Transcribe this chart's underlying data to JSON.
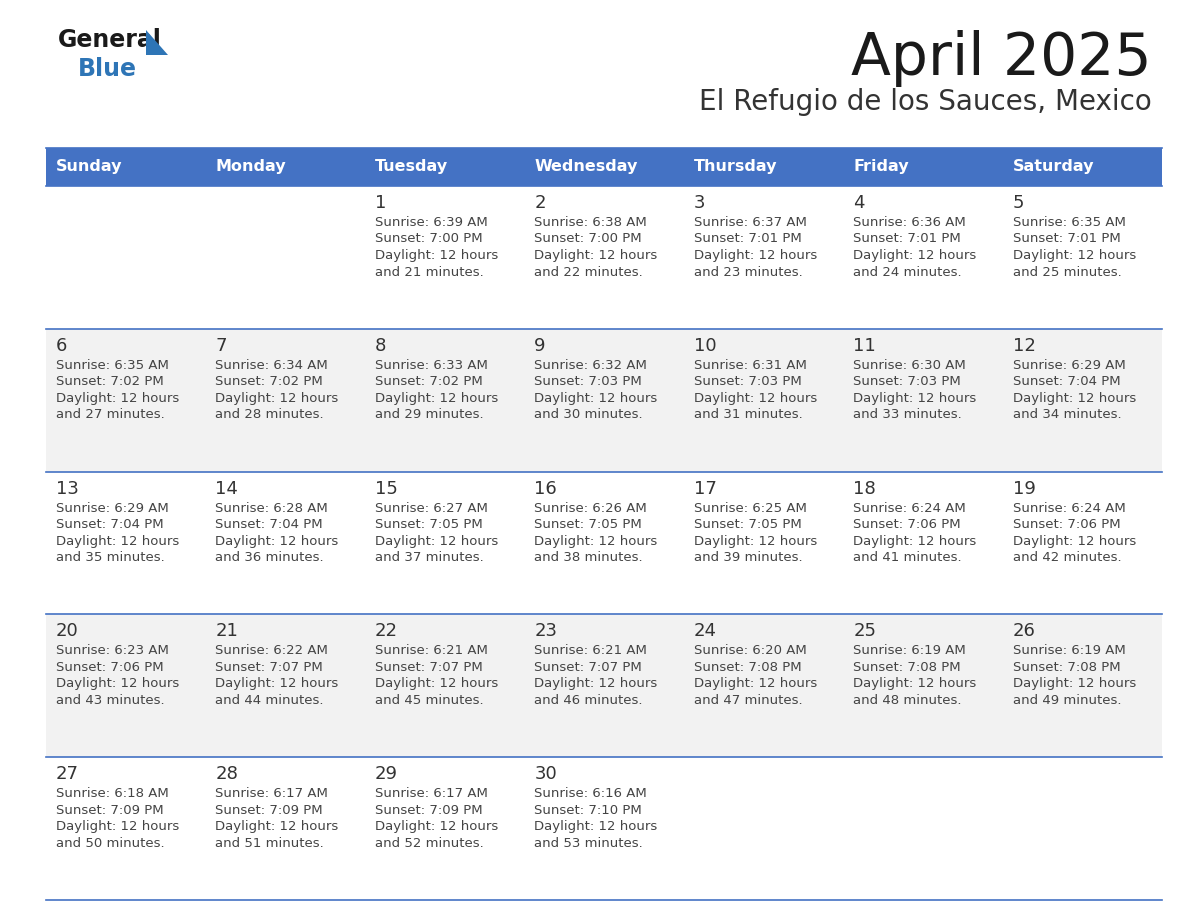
{
  "title": "April 2025",
  "subtitle": "El Refugio de los Sauces, Mexico",
  "days_of_week": [
    "Sunday",
    "Monday",
    "Tuesday",
    "Wednesday",
    "Thursday",
    "Friday",
    "Saturday"
  ],
  "header_bg": "#4472C4",
  "header_text": "#FFFFFF",
  "row_bg_white": "#FFFFFF",
  "row_bg_gray": "#F2F2F2",
  "border_color": "#4472C4",
  "day_number_color": "#333333",
  "text_color": "#444444",
  "title_color": "#1a1a1a",
  "subtitle_color": "#333333",
  "logo_general_color": "#1a1a1a",
  "logo_blue_color": "#2E75B6",
  "week_rows": [
    {
      "bg": "white",
      "days": [
        {
          "date": "",
          "sunrise": "",
          "sunset": "",
          "daylight": ""
        },
        {
          "date": "",
          "sunrise": "",
          "sunset": "",
          "daylight": ""
        },
        {
          "date": "1",
          "sunrise": "6:39 AM",
          "sunset": "7:00 PM",
          "daylight_line1": "Daylight: 12 hours",
          "daylight_line2": "and 21 minutes."
        },
        {
          "date": "2",
          "sunrise": "6:38 AM",
          "sunset": "7:00 PM",
          "daylight_line1": "Daylight: 12 hours",
          "daylight_line2": "and 22 minutes."
        },
        {
          "date": "3",
          "sunrise": "6:37 AM",
          "sunset": "7:01 PM",
          "daylight_line1": "Daylight: 12 hours",
          "daylight_line2": "and 23 minutes."
        },
        {
          "date": "4",
          "sunrise": "6:36 AM",
          "sunset": "7:01 PM",
          "daylight_line1": "Daylight: 12 hours",
          "daylight_line2": "and 24 minutes."
        },
        {
          "date": "5",
          "sunrise": "6:35 AM",
          "sunset": "7:01 PM",
          "daylight_line1": "Daylight: 12 hours",
          "daylight_line2": "and 25 minutes."
        }
      ]
    },
    {
      "bg": "gray",
      "days": [
        {
          "date": "6",
          "sunrise": "6:35 AM",
          "sunset": "7:02 PM",
          "daylight_line1": "Daylight: 12 hours",
          "daylight_line2": "and 27 minutes."
        },
        {
          "date": "7",
          "sunrise": "6:34 AM",
          "sunset": "7:02 PM",
          "daylight_line1": "Daylight: 12 hours",
          "daylight_line2": "and 28 minutes."
        },
        {
          "date": "8",
          "sunrise": "6:33 AM",
          "sunset": "7:02 PM",
          "daylight_line1": "Daylight: 12 hours",
          "daylight_line2": "and 29 minutes."
        },
        {
          "date": "9",
          "sunrise": "6:32 AM",
          "sunset": "7:03 PM",
          "daylight_line1": "Daylight: 12 hours",
          "daylight_line2": "and 30 minutes."
        },
        {
          "date": "10",
          "sunrise": "6:31 AM",
          "sunset": "7:03 PM",
          "daylight_line1": "Daylight: 12 hours",
          "daylight_line2": "and 31 minutes."
        },
        {
          "date": "11",
          "sunrise": "6:30 AM",
          "sunset": "7:03 PM",
          "daylight_line1": "Daylight: 12 hours",
          "daylight_line2": "and 33 minutes."
        },
        {
          "date": "12",
          "sunrise": "6:29 AM",
          "sunset": "7:04 PM",
          "daylight_line1": "Daylight: 12 hours",
          "daylight_line2": "and 34 minutes."
        }
      ]
    },
    {
      "bg": "white",
      "days": [
        {
          "date": "13",
          "sunrise": "6:29 AM",
          "sunset": "7:04 PM",
          "daylight_line1": "Daylight: 12 hours",
          "daylight_line2": "and 35 minutes."
        },
        {
          "date": "14",
          "sunrise": "6:28 AM",
          "sunset": "7:04 PM",
          "daylight_line1": "Daylight: 12 hours",
          "daylight_line2": "and 36 minutes."
        },
        {
          "date": "15",
          "sunrise": "6:27 AM",
          "sunset": "7:05 PM",
          "daylight_line1": "Daylight: 12 hours",
          "daylight_line2": "and 37 minutes."
        },
        {
          "date": "16",
          "sunrise": "6:26 AM",
          "sunset": "7:05 PM",
          "daylight_line1": "Daylight: 12 hours",
          "daylight_line2": "and 38 minutes."
        },
        {
          "date": "17",
          "sunrise": "6:25 AM",
          "sunset": "7:05 PM",
          "daylight_line1": "Daylight: 12 hours",
          "daylight_line2": "and 39 minutes."
        },
        {
          "date": "18",
          "sunrise": "6:24 AM",
          "sunset": "7:06 PM",
          "daylight_line1": "Daylight: 12 hours",
          "daylight_line2": "and 41 minutes."
        },
        {
          "date": "19",
          "sunrise": "6:24 AM",
          "sunset": "7:06 PM",
          "daylight_line1": "Daylight: 12 hours",
          "daylight_line2": "and 42 minutes."
        }
      ]
    },
    {
      "bg": "gray",
      "days": [
        {
          "date": "20",
          "sunrise": "6:23 AM",
          "sunset": "7:06 PM",
          "daylight_line1": "Daylight: 12 hours",
          "daylight_line2": "and 43 minutes."
        },
        {
          "date": "21",
          "sunrise": "6:22 AM",
          "sunset": "7:07 PM",
          "daylight_line1": "Daylight: 12 hours",
          "daylight_line2": "and 44 minutes."
        },
        {
          "date": "22",
          "sunrise": "6:21 AM",
          "sunset": "7:07 PM",
          "daylight_line1": "Daylight: 12 hours",
          "daylight_line2": "and 45 minutes."
        },
        {
          "date": "23",
          "sunrise": "6:21 AM",
          "sunset": "7:07 PM",
          "daylight_line1": "Daylight: 12 hours",
          "daylight_line2": "and 46 minutes."
        },
        {
          "date": "24",
          "sunrise": "6:20 AM",
          "sunset": "7:08 PM",
          "daylight_line1": "Daylight: 12 hours",
          "daylight_line2": "and 47 minutes."
        },
        {
          "date": "25",
          "sunrise": "6:19 AM",
          "sunset": "7:08 PM",
          "daylight_line1": "Daylight: 12 hours",
          "daylight_line2": "and 48 minutes."
        },
        {
          "date": "26",
          "sunrise": "6:19 AM",
          "sunset": "7:08 PM",
          "daylight_line1": "Daylight: 12 hours",
          "daylight_line2": "and 49 minutes."
        }
      ]
    },
    {
      "bg": "white",
      "days": [
        {
          "date": "27",
          "sunrise": "6:18 AM",
          "sunset": "7:09 PM",
          "daylight_line1": "Daylight: 12 hours",
          "daylight_line2": "and 50 minutes."
        },
        {
          "date": "28",
          "sunrise": "6:17 AM",
          "sunset": "7:09 PM",
          "daylight_line1": "Daylight: 12 hours",
          "daylight_line2": "and 51 minutes."
        },
        {
          "date": "29",
          "sunrise": "6:17 AM",
          "sunset": "7:09 PM",
          "daylight_line1": "Daylight: 12 hours",
          "daylight_line2": "and 52 minutes."
        },
        {
          "date": "30",
          "sunrise": "6:16 AM",
          "sunset": "7:10 PM",
          "daylight_line1": "Daylight: 12 hours",
          "daylight_line2": "and 53 minutes."
        },
        {
          "date": "",
          "sunrise": "",
          "sunset": "",
          "daylight_line1": "",
          "daylight_line2": ""
        },
        {
          "date": "",
          "sunrise": "",
          "sunset": "",
          "daylight_line1": "",
          "daylight_line2": ""
        },
        {
          "date": "",
          "sunrise": "",
          "sunset": "",
          "daylight_line1": "",
          "daylight_line2": ""
        }
      ]
    }
  ]
}
